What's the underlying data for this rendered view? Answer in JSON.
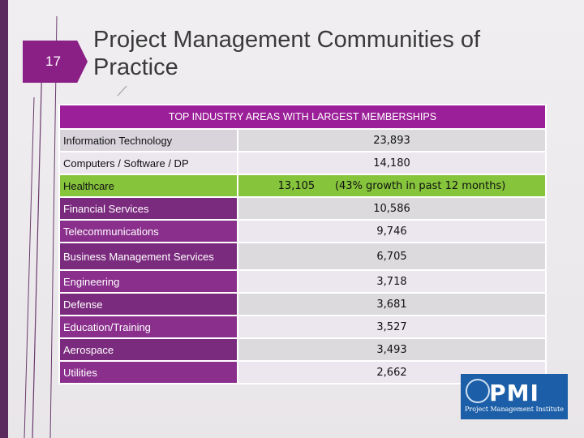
{
  "slide": {
    "number": "17",
    "title": "Project Management Communities of Practice"
  },
  "table": {
    "header": "TOP INDUSTRY AREAS WITH LARGEST MEMBERSHIPS",
    "rows": [
      {
        "label": "Information Technology",
        "value": "23,893"
      },
      {
        "label": "Computers / Software / DP",
        "value": "14,180"
      },
      {
        "label": "Healthcare",
        "value": "13,105",
        "note": "(43% growth in past 12 months)"
      },
      {
        "label": "Financial Services",
        "value": "10,586"
      },
      {
        "label": "Telecommunications",
        "value": "9,746"
      },
      {
        "label": "Business Management Services",
        "value": "6,705"
      },
      {
        "label": "Engineering",
        "value": "3,718"
      },
      {
        "label": "Defense",
        "value": "3,681"
      },
      {
        "label": "Education/Training",
        "value": "3,527"
      },
      {
        "label": "Aerospace",
        "value": "3,493"
      },
      {
        "label": "Utilities",
        "value": "2,662"
      }
    ]
  },
  "logo": {
    "text": "PMI",
    "subtitle": "Project Management Institute"
  },
  "colors": {
    "accent": "#9b1f99",
    "highlight": "#86c43c",
    "label_bg": "#7b2b7e",
    "logo_blue": "#1c5fa8"
  }
}
